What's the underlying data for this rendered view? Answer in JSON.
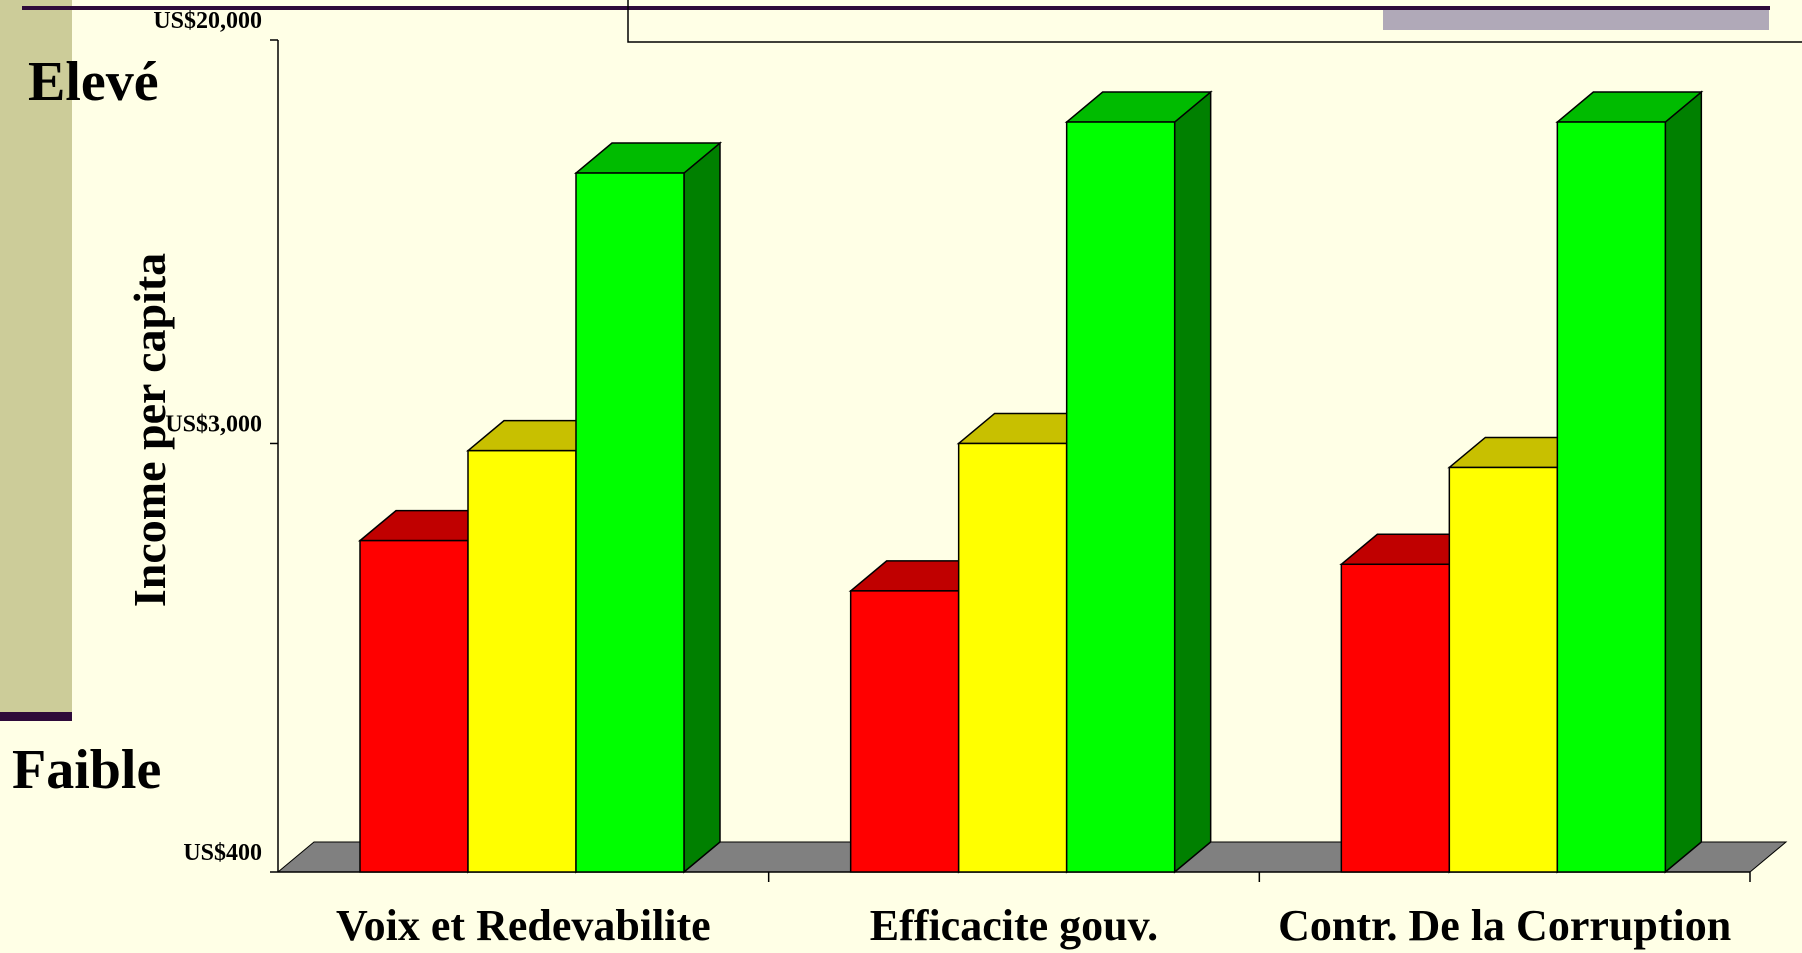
{
  "slide": {
    "side_label_high": "Elevé",
    "side_label_low": "Faible",
    "colors": {
      "background": "#FFFFE6",
      "sidebar": "#CCCC99",
      "rule": "#2E0A3A",
      "header_box": "#B0A9B8",
      "floor": "#808080"
    }
  },
  "chart_data": {
    "type": "bar",
    "ylabel": "Income per capita",
    "y_scale": "log",
    "ylim": [
      400,
      20000
    ],
    "y_ticks": [
      {
        "value": 400,
        "label": "US$400"
      },
      {
        "value": 3000,
        "label": "US$3,000"
      },
      {
        "value": 20000,
        "label": "US$20,000"
      }
    ],
    "categories": [
      "Voix et Redevabilite",
      "Efficacite gouv.",
      "Contr. De la Corruption"
    ],
    "series": [
      {
        "color": "#FF0000",
        "side": "#B00000",
        "top": "#C00000",
        "values": [
          1900,
          1500,
          1700
        ]
      },
      {
        "color": "#FFFF00",
        "side": "#B8B800",
        "top": "#C8C000",
        "values": [
          2900,
          3000,
          2680
        ]
      },
      {
        "color": "#00FF00",
        "side": "#008000",
        "top": "#00BB00",
        "values": [
          10700,
          13600,
          13600
        ]
      }
    ],
    "grid": false,
    "legend": "none"
  }
}
